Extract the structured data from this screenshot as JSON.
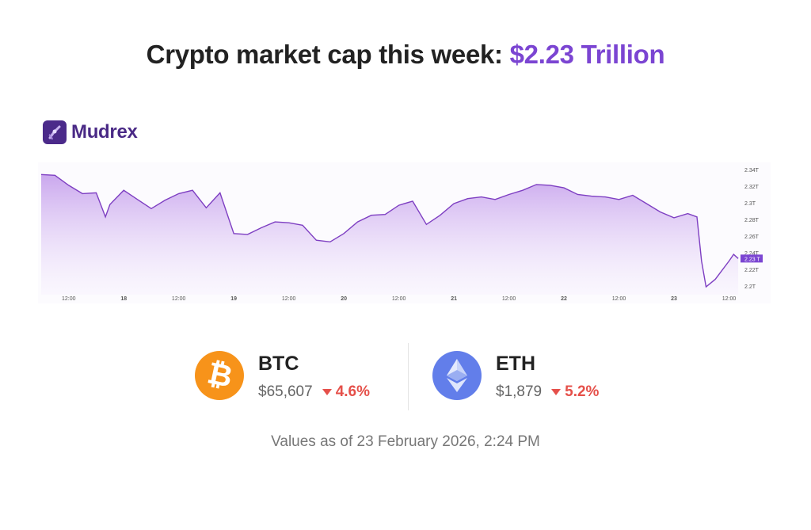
{
  "header": {
    "title_prefix": "Crypto market cap this week: ",
    "title_value": "$2.23 Trillion"
  },
  "brand": {
    "name": "Mudrex",
    "color": "#4b2a8a"
  },
  "colors": {
    "accent": "#7b45d2",
    "line": "#7e3fc2",
    "negative": "#e5504a",
    "btc": "#f7931a",
    "eth": "#627eea"
  },
  "coins": [
    {
      "symbol": "BTC",
      "price": "$65,607",
      "change": "4.6%",
      "direction": "down",
      "icon": "bitcoin-icon"
    },
    {
      "symbol": "ETH",
      "price": "$1,879",
      "change": "5.2%",
      "direction": "down",
      "icon": "ethereum-icon"
    }
  ],
  "footer": {
    "as_of": "Values as of 23 February 2026, 2:24 PM"
  },
  "chart_data": {
    "type": "area",
    "title": "",
    "xlabel": "",
    "ylabel": "",
    "ylim": [
      2.2,
      2.34
    ],
    "grid": false,
    "current_value_label": "2.23 T",
    "y_ticks": [
      {
        "value": 2.34,
        "label": "2.34T"
      },
      {
        "value": 2.32,
        "label": "2.32T"
      },
      {
        "value": 2.3,
        "label": "2.3T"
      },
      {
        "value": 2.28,
        "label": "2.28T"
      },
      {
        "value": 2.26,
        "label": "2.26T"
      },
      {
        "value": 2.24,
        "label": "2.24T"
      },
      {
        "value": 2.22,
        "label": "2.22T"
      },
      {
        "value": 2.2,
        "label": "2.2T"
      }
    ],
    "x_ticks": [
      {
        "t": "2026-02-17T12:00",
        "label": "12:00",
        "bold": false
      },
      {
        "t": "2026-02-18T00:00",
        "label": "18",
        "bold": true
      },
      {
        "t": "2026-02-18T12:00",
        "label": "12:00",
        "bold": false
      },
      {
        "t": "2026-02-19T00:00",
        "label": "19",
        "bold": true
      },
      {
        "t": "2026-02-19T12:00",
        "label": "12:00",
        "bold": false
      },
      {
        "t": "2026-02-20T00:00",
        "label": "20",
        "bold": true
      },
      {
        "t": "2026-02-20T12:00",
        "label": "12:00",
        "bold": false
      },
      {
        "t": "2026-02-21T00:00",
        "label": "21",
        "bold": true
      },
      {
        "t": "2026-02-21T12:00",
        "label": "12:00",
        "bold": false
      },
      {
        "t": "2026-02-22T00:00",
        "label": "22",
        "bold": true
      },
      {
        "t": "2026-02-22T12:00",
        "label": "12:00",
        "bold": false
      },
      {
        "t": "2026-02-23T00:00",
        "label": "23",
        "bold": true
      },
      {
        "t": "2026-02-23T12:00",
        "label": "12:00",
        "bold": false
      }
    ],
    "series": [
      {
        "unit": "T",
        "points": [
          [
            "2026-02-17T06:00",
            2.334
          ],
          [
            "2026-02-17T09:00",
            2.333
          ],
          [
            "2026-02-17T12:00",
            2.321
          ],
          [
            "2026-02-17T15:00",
            2.311
          ],
          [
            "2026-02-17T18:00",
            2.312
          ],
          [
            "2026-02-17T20:00",
            2.283
          ],
          [
            "2026-02-17T21:00",
            2.298
          ],
          [
            "2026-02-18T00:00",
            2.315
          ],
          [
            "2026-02-18T03:00",
            2.304
          ],
          [
            "2026-02-18T06:00",
            2.293
          ],
          [
            "2026-02-18T09:00",
            2.303
          ],
          [
            "2026-02-18T12:00",
            2.311
          ],
          [
            "2026-02-18T15:00",
            2.315
          ],
          [
            "2026-02-18T18:00",
            2.294
          ],
          [
            "2026-02-18T21:00",
            2.312
          ],
          [
            "2026-02-19T00:00",
            2.263
          ],
          [
            "2026-02-19T03:00",
            2.262
          ],
          [
            "2026-02-19T06:00",
            2.27
          ],
          [
            "2026-02-19T09:00",
            2.277
          ],
          [
            "2026-02-19T12:00",
            2.276
          ],
          [
            "2026-02-19T15:00",
            2.273
          ],
          [
            "2026-02-19T18:00",
            2.255
          ],
          [
            "2026-02-19T21:00",
            2.253
          ],
          [
            "2026-02-20T00:00",
            2.263
          ],
          [
            "2026-02-20T03:00",
            2.277
          ],
          [
            "2026-02-20T06:00",
            2.285
          ],
          [
            "2026-02-20T09:00",
            2.286
          ],
          [
            "2026-02-20T12:00",
            2.297
          ],
          [
            "2026-02-20T15:00",
            2.302
          ],
          [
            "2026-02-20T18:00",
            2.274
          ],
          [
            "2026-02-20T21:00",
            2.285
          ],
          [
            "2026-02-21T00:00",
            2.299
          ],
          [
            "2026-02-21T03:00",
            2.305
          ],
          [
            "2026-02-21T06:00",
            2.307
          ],
          [
            "2026-02-21T09:00",
            2.304
          ],
          [
            "2026-02-21T12:00",
            2.31
          ],
          [
            "2026-02-21T15:00",
            2.315
          ],
          [
            "2026-02-21T18:00",
            2.322
          ],
          [
            "2026-02-21T21:00",
            2.321
          ],
          [
            "2026-02-22T00:00",
            2.318
          ],
          [
            "2026-02-22T03:00",
            2.31
          ],
          [
            "2026-02-22T06:00",
            2.308
          ],
          [
            "2026-02-22T09:00",
            2.307
          ],
          [
            "2026-02-22T12:00",
            2.304
          ],
          [
            "2026-02-22T15:00",
            2.309
          ],
          [
            "2026-02-22T18:00",
            2.299
          ],
          [
            "2026-02-22T21:00",
            2.289
          ],
          [
            "2026-02-23T00:00",
            2.282
          ],
          [
            "2026-02-23T03:00",
            2.287
          ],
          [
            "2026-02-23T05:00",
            2.283
          ],
          [
            "2026-02-23T06:00",
            2.23
          ],
          [
            "2026-02-23T07:00",
            2.199
          ],
          [
            "2026-02-23T09:00",
            2.208
          ],
          [
            "2026-02-23T12:00",
            2.23
          ],
          [
            "2026-02-23T13:00",
            2.238
          ],
          [
            "2026-02-23T14:00",
            2.233
          ]
        ]
      }
    ]
  }
}
